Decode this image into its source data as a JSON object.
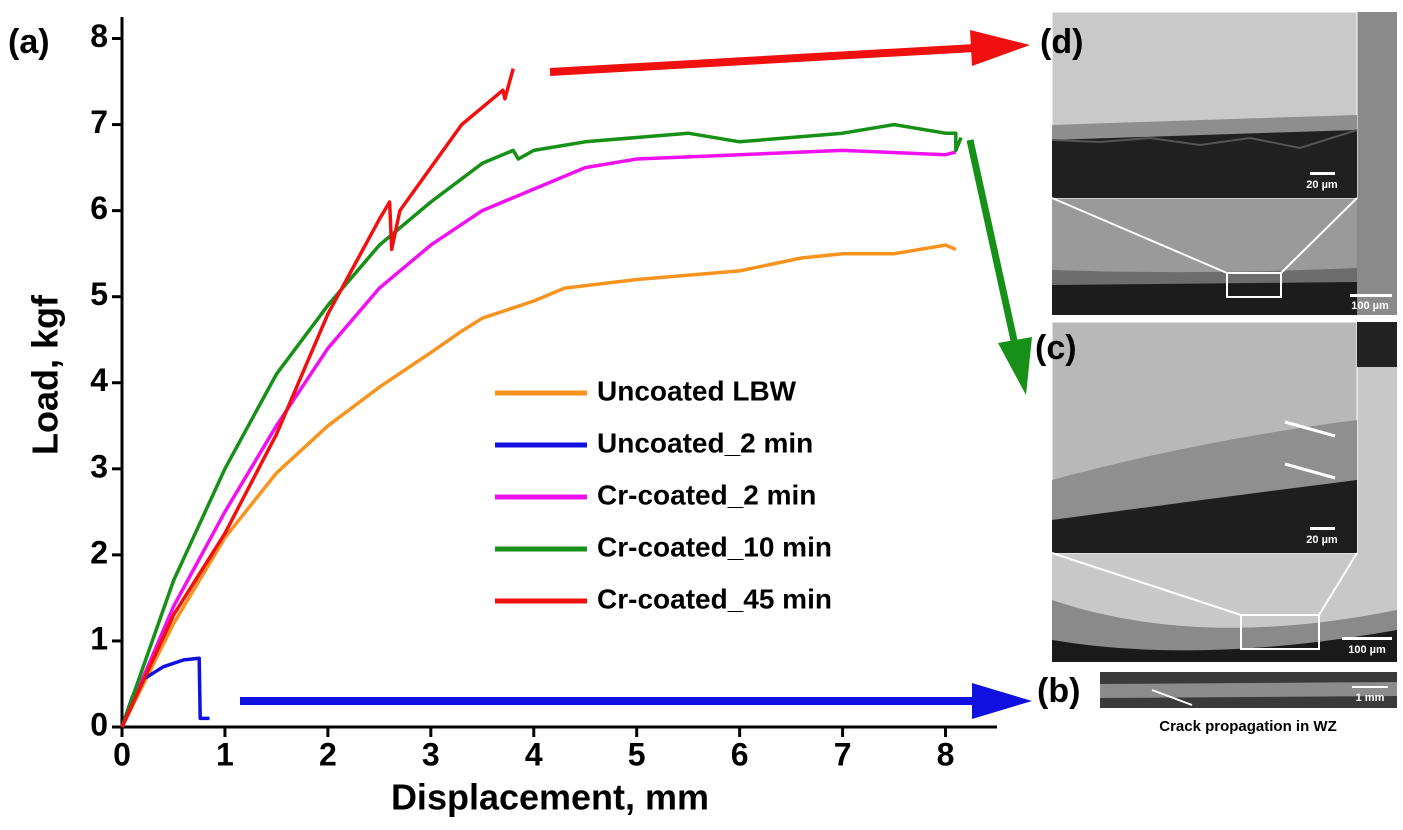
{
  "chart_data": {
    "type": "line",
    "panel_label": "(a)",
    "x_label": "Displacement, mm",
    "y_label": "Load, kgf",
    "xlim": [
      0,
      8.5
    ],
    "ylim": [
      0,
      8.25
    ],
    "xticks": [
      0,
      1,
      2,
      3,
      4,
      5,
      6,
      7,
      8
    ],
    "yticks": [
      0,
      1,
      2,
      3,
      4,
      5,
      6,
      7,
      8
    ],
    "legend_position": "center",
    "series": [
      {
        "name": "Uncoated LBW",
        "color": "#f7931e",
        "x": [
          0,
          0.5,
          1,
          1.5,
          2,
          2.5,
          3,
          3.3,
          3.5,
          4,
          4.3,
          5,
          6,
          6.6,
          7,
          7.5,
          8,
          8.1
        ],
        "values": [
          0,
          1.2,
          2.2,
          2.95,
          3.5,
          3.95,
          4.35,
          4.6,
          4.75,
          4.95,
          5.1,
          5.2,
          5.3,
          5.45,
          5.5,
          5.5,
          5.6,
          5.55
        ]
      },
      {
        "name": "Uncoated_2 min",
        "color": "#1010e0",
        "x": [
          0,
          0.1,
          0.2,
          0.4,
          0.6,
          0.75,
          0.76,
          0.85
        ],
        "values": [
          0,
          0.35,
          0.55,
          0.7,
          0.78,
          0.8,
          0.1,
          0.1
        ]
      },
      {
        "name": "Cr-coated_2 min",
        "color": "#f010f0",
        "x": [
          0,
          0.5,
          1,
          1.5,
          2,
          2.5,
          3,
          3.5,
          4,
          4.5,
          5,
          6,
          7,
          8,
          8.1
        ],
        "values": [
          0,
          1.4,
          2.5,
          3.5,
          4.4,
          5.1,
          5.6,
          6.0,
          6.25,
          6.5,
          6.6,
          6.65,
          6.7,
          6.65,
          6.68
        ]
      },
      {
        "name": "Cr-coated_10 min",
        "color": "#169016",
        "x": [
          0,
          0.5,
          1,
          1.5,
          2,
          2.5,
          3,
          3.5,
          3.8,
          3.85,
          4,
          4.5,
          5,
          5.5,
          6,
          6.5,
          7,
          7.5,
          8,
          8.1,
          8.1,
          8.15
        ],
        "values": [
          0,
          1.7,
          3.0,
          4.1,
          4.9,
          5.6,
          6.1,
          6.55,
          6.7,
          6.6,
          6.7,
          6.8,
          6.85,
          6.9,
          6.8,
          6.85,
          6.9,
          7.0,
          6.9,
          6.9,
          6.7,
          6.85
        ]
      },
      {
        "name": "Cr-coated_45 min",
        "color": "#f01010",
        "x": [
          0,
          0.5,
          1,
          1.5,
          2,
          2.5,
          2.6,
          2.62,
          2.7,
          3,
          3.3,
          3.7,
          3.72,
          3.8
        ],
        "values": [
          0,
          1.3,
          2.25,
          3.4,
          4.8,
          5.9,
          6.1,
          5.55,
          6.0,
          6.5,
          7.0,
          7.4,
          7.3,
          7.65
        ]
      }
    ]
  },
  "micrographs": {
    "panels": [
      {
        "label": "(d)",
        "scale_labels": [
          "20 µm",
          "100 µm"
        ]
      },
      {
        "label": "(c)",
        "scale_labels": [
          "20 µm",
          "100 µm"
        ]
      },
      {
        "label": "(b)",
        "scale_labels": [
          "1 mm"
        ]
      }
    ],
    "caption": "Crack propagation in WZ"
  }
}
